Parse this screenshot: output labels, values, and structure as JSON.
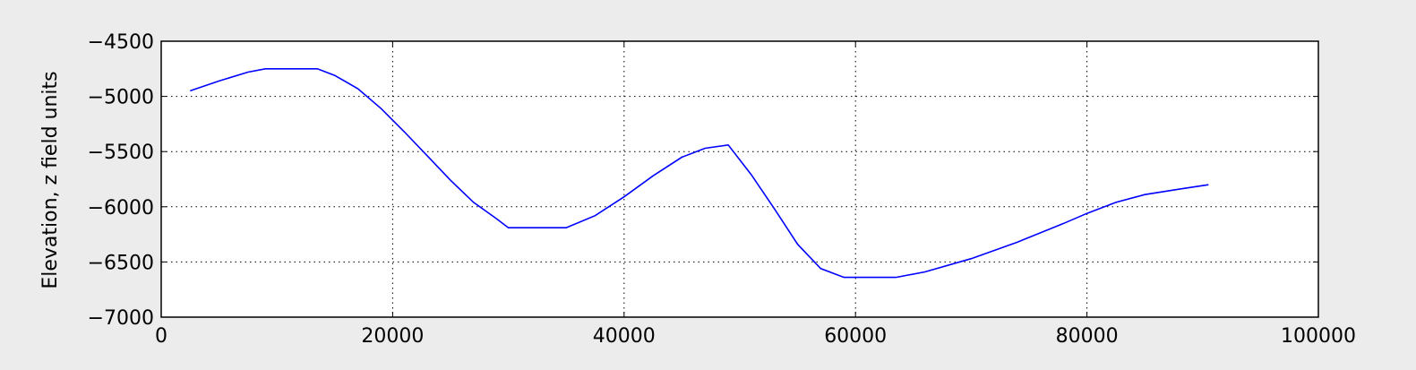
{
  "chart_data": {
    "type": "line",
    "title": "",
    "xlabel": "",
    "ylabel": "Elevation, z field units",
    "xlim": [
      0,
      100000
    ],
    "ylim": [
      -7000,
      -4500
    ],
    "x_ticks": [
      0,
      20000,
      40000,
      60000,
      80000,
      100000
    ],
    "y_ticks": [
      -4500,
      -5000,
      -5500,
      -6000,
      -6500,
      -7000
    ],
    "x_tick_labels": [
      "0",
      "20000",
      "40000",
      "60000",
      "80000",
      "100000"
    ],
    "y_tick_labels": [
      "−4500",
      "−5000",
      "−5500",
      "−6000",
      "−6500",
      "−7000"
    ],
    "grid": true,
    "line_color": "#0000ff",
    "series": [
      {
        "x": [
          2500,
          5000,
          7500,
          9000,
          11000,
          13500,
          15000,
          17000,
          19000,
          21000,
          23000,
          25000,
          27000,
          29000,
          30000,
          32500,
          35000,
          37500,
          40000,
          42500,
          45000,
          47000,
          49000,
          51000,
          53000,
          55000,
          57000,
          59000,
          61000,
          63500,
          66000,
          70000,
          74000,
          78000,
          80000,
          82500,
          85000,
          88000,
          90500
        ],
        "y": [
          -4950,
          -4860,
          -4780,
          -4750,
          -4750,
          -4750,
          -4810,
          -4930,
          -5110,
          -5320,
          -5540,
          -5760,
          -5960,
          -6110,
          -6190,
          -6190,
          -6190,
          -6080,
          -5910,
          -5720,
          -5550,
          -5470,
          -5440,
          -5710,
          -6020,
          -6340,
          -6560,
          -6640,
          -6640,
          -6640,
          -6590,
          -6470,
          -6320,
          -6150,
          -6060,
          -5960,
          -5890,
          -5840,
          -5800
        ]
      }
    ]
  }
}
